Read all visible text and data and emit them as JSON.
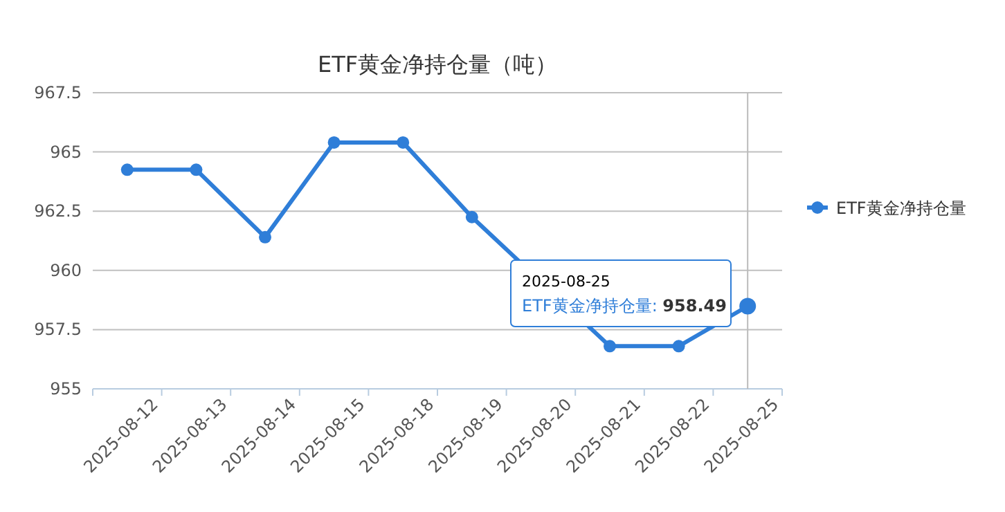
{
  "chart_data": {
    "type": "line",
    "title": "ETF黄金净持仓量（吨）",
    "categories": [
      "2025-08-12",
      "2025-08-13",
      "2025-08-14",
      "2025-08-15",
      "2025-08-18",
      "2025-08-19",
      "2025-08-20",
      "2025-08-21",
      "2025-08-22",
      "2025-08-25"
    ],
    "series": [
      {
        "name": "ETF黄金净持仓量",
        "color": "#2f7ed8",
        "values": [
          964.25,
          964.25,
          961.4,
          965.4,
          965.4,
          962.25,
          null,
          956.8,
          956.8,
          958.49
        ]
      }
    ],
    "ylim": [
      955,
      967.5
    ],
    "yticks": [
      955,
      957.5,
      960,
      962.5,
      965,
      967.5
    ],
    "grid": "y",
    "legend": "right",
    "marker": "circle",
    "line_style": "solid",
    "ref_lines": [
      {
        "axis": "x",
        "value": "2025-08-25",
        "color": "#bbbbbb"
      }
    ],
    "annotations": [
      "2025-08-25",
      "ETF黄金净持仓量: **958.49**"
    ]
  }
}
